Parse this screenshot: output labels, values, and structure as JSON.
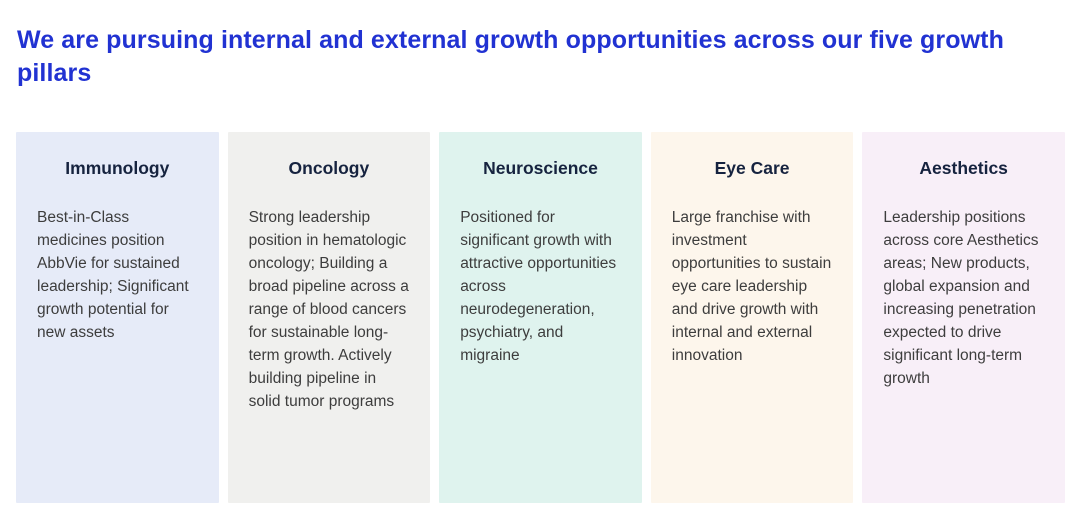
{
  "page": {
    "title": "We are pursuing internal and external growth opportunities across our five growth pillars"
  },
  "colors": {
    "title_text": "#2132d2",
    "pillar_name_text": "#16233f",
    "pillar_desc_text": "#3d3d3d",
    "background": "#ffffff"
  },
  "pillars": [
    {
      "name": "Immunology",
      "description": "Best-in-Class medicines position AbbVie for sustained leadership; Significant growth potential for new assets",
      "bg_color": "#e6ebf8"
    },
    {
      "name": "Oncology",
      "description": "Strong leadership position in hematologic oncology; Building a broad pipeline across a range of blood cancers for sustainable long-term growth. Actively building pipeline in solid tumor programs",
      "bg_color": "#f0f0ee"
    },
    {
      "name": "Neuroscience",
      "description": "Positioned for significant growth with attractive opportunities across neurodegeneration, psychiatry, and migraine",
      "bg_color": "#dff3ee"
    },
    {
      "name": "Eye Care",
      "description": "Large franchise with investment opportunities to sustain eye care leadership and drive growth with internal and external innovation",
      "bg_color": "#fdf6ec"
    },
    {
      "name": "Aesthetics",
      "description": "Leadership positions across core Aesthetics areas; New products, global expansion and increasing penetration expected to drive significant long-term growth",
      "bg_color": "#f8eff8"
    }
  ]
}
